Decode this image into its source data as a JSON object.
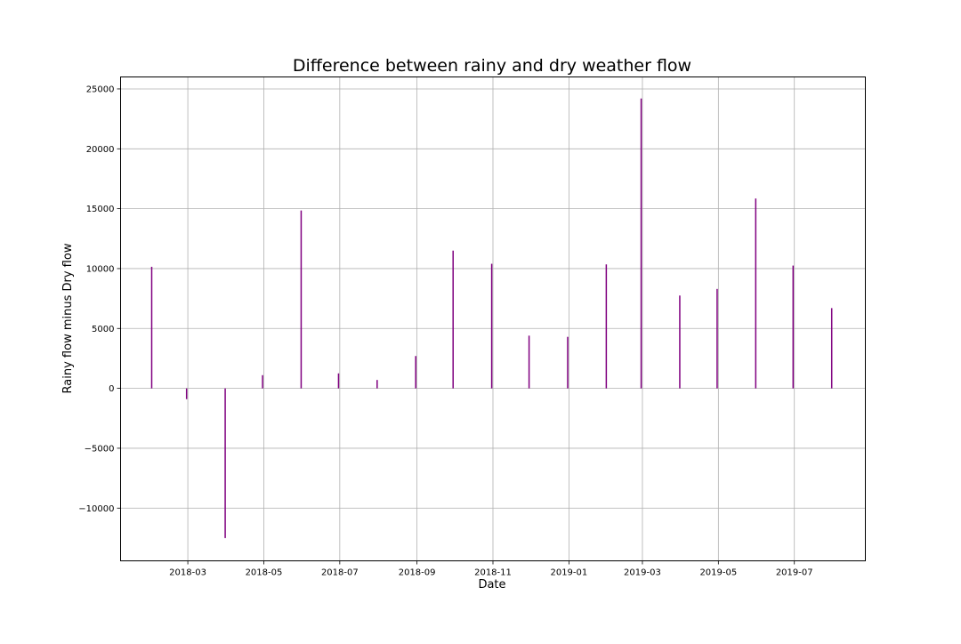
{
  "chart_data": {
    "type": "bar",
    "title": "Difference between rainy and dry weather flow",
    "xlabel": "Date",
    "ylabel": "Rainy flow minus Dry flow",
    "x_tick_labels": [
      "2018-03",
      "2018-05",
      "2018-07",
      "2018-09",
      "2018-11",
      "2019-01",
      "2019-03",
      "2019-05",
      "2019-07"
    ],
    "x_tick_dates": [
      "2018-03-01",
      "2018-05-01",
      "2018-07-01",
      "2018-09-01",
      "2018-11-01",
      "2019-01-01",
      "2019-03-01",
      "2019-05-01",
      "2019-07-01"
    ],
    "y_ticks": [
      -10000,
      -5000,
      0,
      5000,
      10000,
      15000,
      20000,
      25000
    ],
    "y_tick_labels": [
      "−10000",
      "−5000",
      "0",
      "5000",
      "10000",
      "15000",
      "20000",
      "25000"
    ],
    "xlim": [
      "2018-01-06",
      "2019-08-27"
    ],
    "ylim": [
      -14400,
      26000
    ],
    "grid": true,
    "bar_color": "#800080",
    "series": [
      {
        "dates": [
          "2018-01-31",
          "2018-02-28",
          "2018-03-31",
          "2018-04-30",
          "2018-05-31",
          "2018-06-30",
          "2018-07-31",
          "2018-08-31",
          "2018-09-30",
          "2018-10-31",
          "2018-11-30",
          "2018-12-31",
          "2019-01-31",
          "2019-02-28",
          "2019-03-31",
          "2019-04-30",
          "2019-05-31",
          "2019-06-30",
          "2019-07-31"
        ],
        "values": [
          10150,
          -900,
          -12500,
          1100,
          14850,
          1250,
          700,
          2700,
          11500,
          10400,
          4400,
          4300,
          10350,
          24200,
          7750,
          8300,
          15850,
          10250,
          6700
        ]
      }
    ]
  }
}
